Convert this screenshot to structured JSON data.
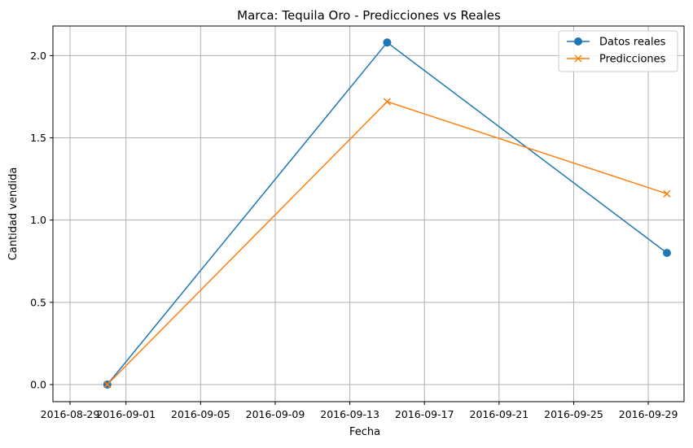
{
  "chart_data": {
    "type": "line",
    "title": "Marca: Tequila Oro - Predicciones vs Reales",
    "xlabel": "Fecha",
    "ylabel": "Cantidad vendida",
    "x_axis": "date",
    "xlim": [
      "2016-08-28T02:00",
      "2016-09-30T22:00"
    ],
    "ylim": [
      -0.104,
      2.18
    ],
    "grid": true,
    "legend_position": "upper right",
    "x_ticks": [
      "2016-08-29",
      "2016-09-01",
      "2016-09-05",
      "2016-09-09",
      "2016-09-13",
      "2016-09-17",
      "2016-09-21",
      "2016-09-25",
      "2016-09-29"
    ],
    "y_ticks": [
      0.0,
      0.5,
      1.0,
      1.5,
      2.0
    ],
    "y_tick_labels": [
      "0.0",
      "0.5",
      "1.0",
      "1.5",
      "2.0"
    ],
    "series": [
      {
        "name": "Datos reales",
        "color": "#1f77b4",
        "marker": "circle",
        "x": [
          "2016-08-31",
          "2016-09-15",
          "2016-09-30"
        ],
        "y": [
          0.0,
          2.08,
          0.8
        ]
      },
      {
        "name": "Predicciones",
        "color": "#ff7f0e",
        "marker": "x",
        "x": [
          "2016-08-31",
          "2016-09-15",
          "2016-09-30"
        ],
        "y": [
          0.0,
          1.72,
          1.16
        ]
      }
    ]
  }
}
